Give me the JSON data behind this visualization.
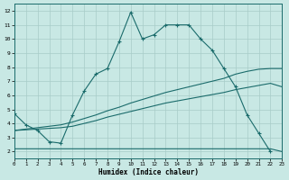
{
  "bg_color": "#c8e8e4",
  "line_color": "#1a6b6b",
  "grid_color": "#a8ccc8",
  "xlabel": "Humidex (Indice chaleur)",
  "xlim": [
    0,
    23
  ],
  "ylim": [
    1.5,
    12.5
  ],
  "line1_x": [
    0,
    1,
    2,
    3,
    4,
    5,
    6,
    7,
    8,
    9,
    10,
    11,
    12,
    13,
    14,
    15,
    16,
    17,
    18,
    19,
    20,
    21,
    22
  ],
  "line1_y": [
    4.7,
    3.9,
    3.5,
    2.7,
    2.6,
    4.6,
    6.3,
    7.5,
    7.9,
    9.8,
    11.9,
    10.0,
    10.3,
    11.0,
    11.0,
    11.0,
    10.0,
    9.2,
    7.9,
    6.6,
    4.6,
    3.3,
    2.0
  ],
  "line2_x": [
    0,
    1,
    2,
    3,
    4,
    5,
    6,
    7,
    8,
    9,
    10,
    11,
    12,
    13,
    14,
    15,
    16,
    17,
    18,
    19,
    20,
    21,
    22,
    23
  ],
  "line2_y": [
    3.5,
    3.55,
    3.6,
    3.65,
    3.7,
    3.8,
    4.0,
    4.2,
    4.45,
    4.65,
    4.85,
    5.05,
    5.25,
    5.45,
    5.6,
    5.75,
    5.9,
    6.05,
    6.2,
    6.4,
    6.55,
    6.7,
    6.85,
    6.6
  ],
  "line3_x": [
    0,
    1,
    2,
    3,
    4,
    5,
    6,
    7,
    8,
    9,
    10,
    11,
    12,
    13,
    14,
    15,
    16,
    17,
    18,
    19,
    20,
    21,
    22,
    23
  ],
  "line3_y": [
    3.5,
    3.6,
    3.7,
    3.8,
    3.9,
    4.1,
    4.35,
    4.6,
    4.9,
    5.15,
    5.45,
    5.7,
    5.95,
    6.2,
    6.4,
    6.6,
    6.8,
    7.0,
    7.2,
    7.5,
    7.7,
    7.85,
    7.9,
    7.9
  ],
  "line4_x": [
    0,
    1,
    2,
    3,
    4,
    5,
    6,
    7,
    8,
    9,
    10,
    11,
    12,
    13,
    14,
    15,
    16,
    17,
    18,
    19,
    20,
    21,
    22,
    23
  ],
  "line4_y": [
    2.2,
    2.2,
    2.2,
    2.2,
    2.2,
    2.2,
    2.2,
    2.2,
    2.2,
    2.2,
    2.2,
    2.2,
    2.2,
    2.2,
    2.2,
    2.2,
    2.2,
    2.2,
    2.2,
    2.2,
    2.2,
    2.2,
    2.2,
    2.0
  ]
}
